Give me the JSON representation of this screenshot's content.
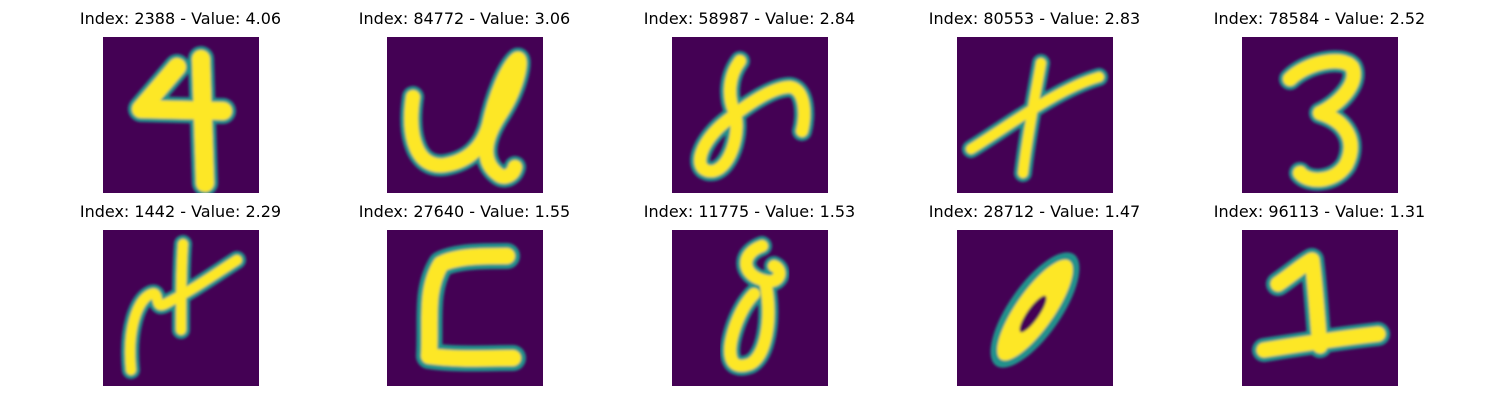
{
  "colors": {
    "background_dark": "#440154",
    "stroke_yellow": "#fde725",
    "edge_teal": "#21918c",
    "edge_green": "#5ec962"
  },
  "panels": [
    {
      "title": "Index: 2388 - Value: 4.06",
      "index": 2388,
      "value": 4.06,
      "depicts": "4"
    },
    {
      "title": "Index: 84772 - Value: 3.06",
      "index": 84772,
      "value": 3.06,
      "depicts": "handwritten loop"
    },
    {
      "title": "Index: 58987 - Value: 2.84",
      "index": 58987,
      "value": 2.84,
      "depicts": "handwritten loop"
    },
    {
      "title": "Index: 80553 - Value: 2.83",
      "index": 80553,
      "value": 2.83,
      "depicts": "x"
    },
    {
      "title": "Index: 78584 - Value: 2.52",
      "index": 78584,
      "value": 2.52,
      "depicts": "3"
    },
    {
      "title": "Index: 1442 - Value: 2.29",
      "index": 1442,
      "value": 2.29,
      "depicts": "handwritten cross"
    },
    {
      "title": "Index: 27640 - Value: 1.55",
      "index": 27640,
      "value": 1.55,
      "depicts": "C-like shape"
    },
    {
      "title": "Index: 11775 - Value: 1.53",
      "index": 11775,
      "value": 1.53,
      "depicts": "handwritten loop"
    },
    {
      "title": "Index: 28712 - Value: 1.47",
      "index": 28712,
      "value": 1.47,
      "depicts": "0"
    },
    {
      "title": "Index: 96113 - Value: 1.31",
      "index": 96113,
      "value": 1.31,
      "depicts": "1"
    }
  ]
}
